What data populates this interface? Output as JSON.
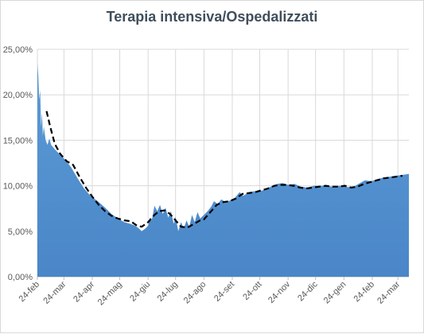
{
  "chart_data": {
    "type": "area",
    "title": "Terapia intensiva/Ospedalizzati",
    "xlabel": "",
    "ylabel": "",
    "ylim": [
      0,
      25
    ],
    "y_tick_labels": [
      "0,00%",
      "5,00%",
      "10,00%",
      "15,00%",
      "20,00%",
      "25,00%"
    ],
    "y_ticks": [
      0,
      5,
      10,
      15,
      20,
      25
    ],
    "x_range": [
      "2020-02-24",
      "2021-04-05"
    ],
    "x_tick_dates": [
      "2020-02-24",
      "2020-03-24",
      "2020-04-24",
      "2020-05-24",
      "2020-06-24",
      "2020-07-24",
      "2020-08-24",
      "2020-09-24",
      "2020-10-24",
      "2020-11-24",
      "2020-12-24",
      "2021-01-24",
      "2021-02-24",
      "2021-03-24"
    ],
    "x_tick_labels": [
      "24-feb",
      "24-mar",
      "24-apr",
      "24-mag",
      "24-giu",
      "24-lug",
      "24-ago",
      "24-set",
      "24-ott",
      "24-nov",
      "24-dic",
      "24-gen",
      "24-feb",
      "24-mar"
    ],
    "grid": true,
    "colors": {
      "area_top": "#5b9bd5",
      "area_bottom": "#4a86c8",
      "trend": "#000000",
      "grid": "#d9d9d9"
    },
    "series": [
      {
        "style": "area",
        "points": [
          [
            "2020-02-24",
            23.5
          ],
          [
            "2020-02-25",
            22.0
          ],
          [
            "2020-02-26",
            19.5
          ],
          [
            "2020-02-27",
            20.5
          ],
          [
            "2020-02-28",
            16.5
          ],
          [
            "2020-02-29",
            18.0
          ],
          [
            "2020-03-01",
            15.5
          ],
          [
            "2020-03-02",
            16.5
          ],
          [
            "2020-03-04",
            15.0
          ],
          [
            "2020-03-06",
            14.5
          ],
          [
            "2020-03-08",
            15.2
          ],
          [
            "2020-03-10",
            14.5
          ],
          [
            "2020-03-14",
            14.0
          ],
          [
            "2020-03-20",
            13.4
          ],
          [
            "2020-03-26",
            12.8
          ],
          [
            "2020-04-01",
            12.0
          ],
          [
            "2020-04-08",
            10.8
          ],
          [
            "2020-04-15",
            9.7
          ],
          [
            "2020-04-22",
            8.9
          ],
          [
            "2020-04-30",
            8.3
          ],
          [
            "2020-05-08",
            7.6
          ],
          [
            "2020-05-15",
            6.9
          ],
          [
            "2020-05-22",
            6.4
          ],
          [
            "2020-05-29",
            6.0
          ],
          [
            "2020-06-05",
            5.8
          ],
          [
            "2020-06-10",
            5.6
          ],
          [
            "2020-06-14",
            5.3
          ],
          [
            "2020-06-17",
            5.0
          ],
          [
            "2020-06-21",
            5.3
          ],
          [
            "2020-06-24",
            5.6
          ],
          [
            "2020-06-26",
            6.5
          ],
          [
            "2020-06-28",
            6.2
          ],
          [
            "2020-07-01",
            7.8
          ],
          [
            "2020-07-04",
            7.2
          ],
          [
            "2020-07-07",
            7.9
          ],
          [
            "2020-07-10",
            6.9
          ],
          [
            "2020-07-13",
            7.6
          ],
          [
            "2020-07-16",
            6.5
          ],
          [
            "2020-07-19",
            7.2
          ],
          [
            "2020-07-22",
            5.8
          ],
          [
            "2020-07-24",
            6.6
          ],
          [
            "2020-07-27",
            5.0
          ],
          [
            "2020-07-30",
            6.0
          ],
          [
            "2020-08-02",
            5.3
          ],
          [
            "2020-08-05",
            6.2
          ],
          [
            "2020-08-08",
            5.5
          ],
          [
            "2020-08-11",
            6.8
          ],
          [
            "2020-08-14",
            6.0
          ],
          [
            "2020-08-17",
            7.1
          ],
          [
            "2020-08-20",
            6.4
          ],
          [
            "2020-08-24",
            6.8
          ],
          [
            "2020-08-28",
            7.2
          ],
          [
            "2020-09-01",
            7.7
          ],
          [
            "2020-09-04",
            8.3
          ],
          [
            "2020-09-08",
            8.0
          ],
          [
            "2020-09-12",
            8.5
          ],
          [
            "2020-09-17",
            8.2
          ],
          [
            "2020-09-22",
            8.4
          ],
          [
            "2020-09-27",
            8.7
          ],
          [
            "2020-10-02",
            9.3
          ],
          [
            "2020-10-06",
            8.9
          ],
          [
            "2020-10-12",
            9.3
          ],
          [
            "2020-10-18",
            9.4
          ],
          [
            "2020-10-24",
            9.4
          ],
          [
            "2020-10-30",
            9.6
          ],
          [
            "2020-11-05",
            9.9
          ],
          [
            "2020-11-12",
            10.2
          ],
          [
            "2020-11-18",
            10.3
          ],
          [
            "2020-11-24",
            10.1
          ],
          [
            "2020-12-01",
            10.2
          ],
          [
            "2020-12-08",
            9.9
          ],
          [
            "2020-12-15",
            9.8
          ],
          [
            "2020-12-22",
            10.0
          ],
          [
            "2020-12-29",
            10.0
          ],
          [
            "2021-01-05",
            10.0
          ],
          [
            "2021-01-12",
            9.9
          ],
          [
            "2021-01-19",
            10.0
          ],
          [
            "2021-01-26",
            9.9
          ],
          [
            "2021-02-02",
            9.8
          ],
          [
            "2021-02-09",
            10.2
          ],
          [
            "2021-02-16",
            10.6
          ],
          [
            "2021-02-23",
            10.5
          ],
          [
            "2021-03-01",
            10.7
          ],
          [
            "2021-03-08",
            10.9
          ],
          [
            "2021-03-15",
            11.0
          ],
          [
            "2021-03-22",
            11.1
          ],
          [
            "2021-03-29",
            11.2
          ],
          [
            "2021-04-05",
            11.3
          ]
        ]
      },
      {
        "style": "dashed-line",
        "points": [
          [
            "2020-03-05",
            18.2
          ],
          [
            "2020-03-09",
            16.5
          ],
          [
            "2020-03-14",
            14.6
          ],
          [
            "2020-03-20",
            13.5
          ],
          [
            "2020-03-27",
            12.7
          ],
          [
            "2020-04-03",
            12.3
          ],
          [
            "2020-04-10",
            11.0
          ],
          [
            "2020-04-17",
            9.8
          ],
          [
            "2020-04-24",
            8.8
          ],
          [
            "2020-05-01",
            7.9
          ],
          [
            "2020-05-08",
            7.2
          ],
          [
            "2020-05-15",
            6.7
          ],
          [
            "2020-05-22",
            6.4
          ],
          [
            "2020-05-29",
            6.2
          ],
          [
            "2020-06-05",
            6.1
          ],
          [
            "2020-06-12",
            5.6
          ],
          [
            "2020-06-17",
            5.5
          ],
          [
            "2020-06-24",
            6.0
          ],
          [
            "2020-07-01",
            6.8
          ],
          [
            "2020-07-06",
            7.2
          ],
          [
            "2020-07-12",
            7.3
          ],
          [
            "2020-07-18",
            6.9
          ],
          [
            "2020-07-24",
            6.2
          ],
          [
            "2020-07-30",
            5.5
          ],
          [
            "2020-08-06",
            5.4
          ],
          [
            "2020-08-13",
            5.8
          ],
          [
            "2020-08-20",
            6.2
          ],
          [
            "2020-08-24",
            6.3
          ],
          [
            "2020-08-31",
            7.1
          ],
          [
            "2020-09-07",
            7.9
          ],
          [
            "2020-09-14",
            8.2
          ],
          [
            "2020-09-21",
            8.3
          ],
          [
            "2020-09-28",
            8.6
          ],
          [
            "2020-10-05",
            9.1
          ],
          [
            "2020-10-12",
            9.2
          ],
          [
            "2020-10-19",
            9.3
          ],
          [
            "2020-10-26",
            9.5
          ],
          [
            "2020-11-02",
            9.7
          ],
          [
            "2020-11-09",
            10.0
          ],
          [
            "2020-11-16",
            10.1
          ],
          [
            "2020-11-23",
            10.1
          ],
          [
            "2020-11-30",
            10.0
          ],
          [
            "2020-12-07",
            9.8
          ],
          [
            "2020-12-14",
            9.7
          ],
          [
            "2020-12-21",
            9.8
          ],
          [
            "2020-12-28",
            9.9
          ],
          [
            "2021-01-04",
            10.0
          ],
          [
            "2021-01-11",
            9.9
          ],
          [
            "2021-01-18",
            9.9
          ],
          [
            "2021-01-25",
            10.0
          ],
          [
            "2021-02-01",
            9.8
          ],
          [
            "2021-02-08",
            9.9
          ],
          [
            "2021-02-15",
            10.2
          ],
          [
            "2021-02-22",
            10.4
          ],
          [
            "2021-03-01",
            10.6
          ],
          [
            "2021-03-08",
            10.8
          ],
          [
            "2021-03-15",
            10.9
          ],
          [
            "2021-03-22",
            11.0
          ],
          [
            "2021-03-29",
            11.1
          ]
        ]
      }
    ]
  }
}
